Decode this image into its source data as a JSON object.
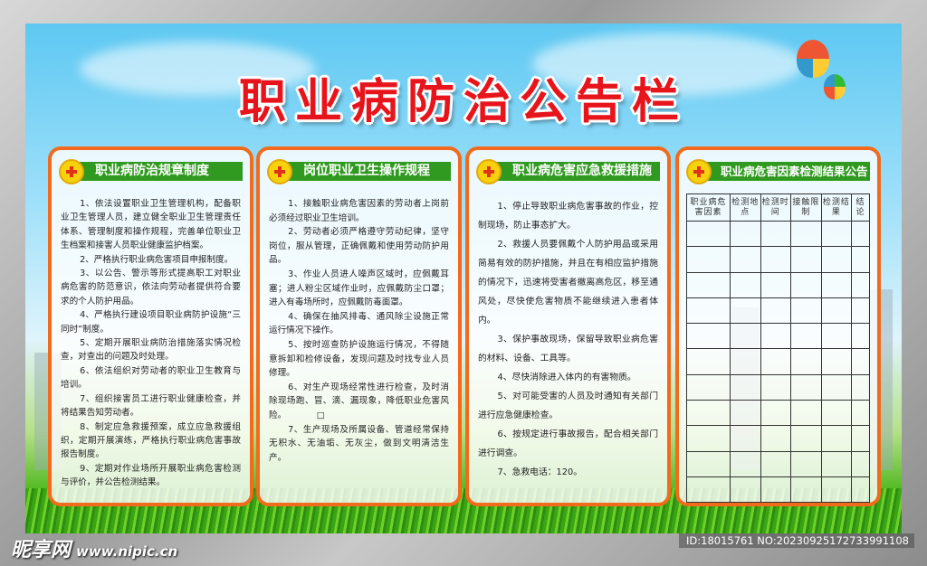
{
  "title": "职业病防治公告栏",
  "panels": [
    {
      "heading": "职业病防治规章制度",
      "items": [
        "1、依法设置职业卫生管理机构，配备职业卫生管理人员，建立健全职业卫生管理责任体系、管理制度和操作规程，完善单位职业卫生档案和接害人员职业健康监护档案。",
        "2、严格执行职业病危害项目申报制度。",
        "3、以公告、警示等形式提高职工对职业病危害的防范意识，依法向劳动者提供符合要求的个人防护用品。",
        "4、严格执行建设项目职业病防护设施“三同时”制度。",
        "5、定期开展职业病防治措施落实情况检查，对查出的问题及时处理。",
        "6、依法组织对劳动者的职业卫生教育与培训。",
        "7、组织接害员工进行职业健康检查，并将结果告知劳动者。",
        "8、制定应急救援预案，成立应急救援组织，定期开展演练，严格执行职业病危害事故报告制度。",
        "9、定期对作业场所开展职业病危害检测与评价，并公告检测结果。"
      ]
    },
    {
      "heading": "岗位职业卫生操作规程",
      "items": [
        "1、接触职业病危害因素的劳动者上岗前必须经过职业卫生培训。",
        "2、劳动者必须严格遵守劳动纪律，坚守岗位，服从管理，正确佩戴和使用劳动防护用品。",
        "3、作业人员进人噪声区域时，应佩戴耳塞；进人粉尘区域作业时，应佩戴防尘口罩；进入有毒场所时，应佩戴防毒面罩。",
        "4、确保在抽风排毒、通风除尘设施正常运行情况下操作。",
        "5、按时巡查防护设施运行情况，不得随意拆卸和检修设备，发现问题及时找专业人员修理。",
        "6、对生产现场经常性进行检查，及时消除现场跑、冒、滴、漏现象，降低职业危害风险。　　　　□",
        "7、生产现场及所属设备、管道经常保持无积水、无油垢、无灰尘，做到文明清洁生产。"
      ]
    },
    {
      "heading": "职业病危害应急救援措施",
      "items": [
        "1、停止导致职业病危害事故的作业，控制现场，防止事态扩大。",
        "2、救援人员要佩戴个人防护用品或采用简易有效的防护措施，并且在有相应监护措施的情况下，迅速将受害者撤离高危区，移至通风处，尽快使危害物质不能继续进入患者体内。",
        "3、保护事故现场，保留导致职业病危害的材料、设备、工具等。",
        "4、尽快消除进入体内的有害物质。",
        "5、对可能受害的人员及时通知有关部门进行应急健康检查。",
        "6、按规定进行事故报告，配合相关部门进行调查。",
        "7、急救电话：120。"
      ]
    },
    {
      "heading": "职业病危害因素检测结果公告",
      "table_headers": [
        "职业病危害因素",
        "检测地点",
        "检测时间",
        "接触限制",
        "检测结果",
        "结论"
      ]
    }
  ],
  "watermark": {
    "brand": "昵享网",
    "url": "www.nipic.cn"
  },
  "id_label": "ID:18015761 NO:20230925172733991108",
  "colors": {
    "title": "#e8141b",
    "panel_border": "#f26a1b",
    "heading_bar": "#2f9a1f"
  }
}
